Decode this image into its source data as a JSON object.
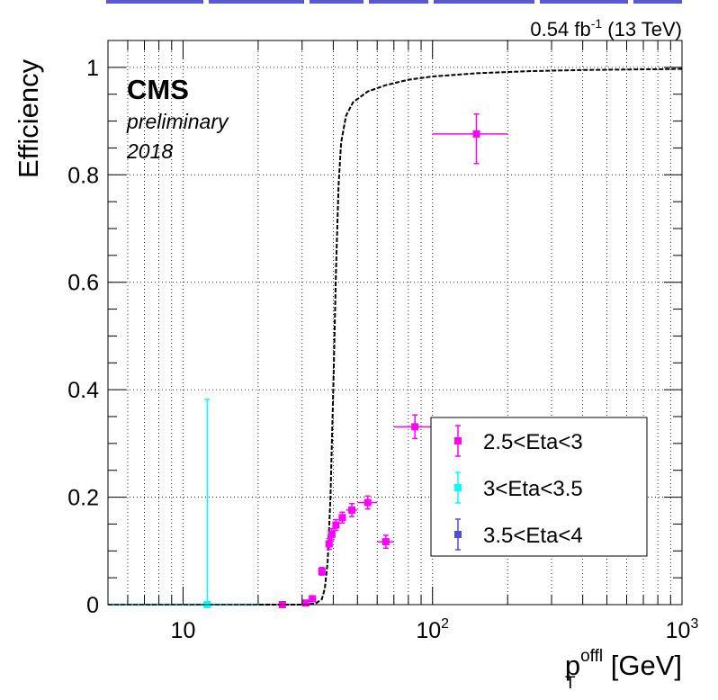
{
  "header": {
    "lumi_main": "0.54 fb",
    "lumi_exp": "-1",
    "lumi_tail": " (13 TeV)"
  },
  "labels": {
    "cms": "CMS",
    "status": "preliminary",
    "year": "2018"
  },
  "chart_data": {
    "type": "scatter",
    "ylabel": "Efficiency",
    "xlabel": {
      "base": "p",
      "sub": "T",
      "sup": "offl",
      "unit": " [GeV]"
    },
    "xscale": "log",
    "xlim": [
      5,
      1000
    ],
    "ylim": [
      0,
      1.05
    ],
    "grid": true,
    "legend_position": "bottom-right",
    "y_ticks": [
      {
        "value": 0,
        "label": "0"
      },
      {
        "value": 0.2,
        "label": "0.2"
      },
      {
        "value": 0.4,
        "label": "0.4"
      },
      {
        "value": 0.6,
        "label": "0.6"
      },
      {
        "value": 0.8,
        "label": "0.8"
      },
      {
        "value": 1,
        "label": "1"
      }
    ],
    "x_ticks": [
      {
        "value": 10,
        "base": "10",
        "exp": ""
      },
      {
        "value": 100,
        "base": "10",
        "exp": "2"
      },
      {
        "value": 1000,
        "base": "10",
        "exp": "3"
      }
    ],
    "reference_curve": {
      "style": "dashed",
      "color": "#000000",
      "points": [
        [
          5,
          0
        ],
        [
          30,
          0
        ],
        [
          34,
          0.002
        ],
        [
          36,
          0.01
        ],
        [
          37,
          0.03
        ],
        [
          38,
          0.08
        ],
        [
          39,
          0.2
        ],
        [
          40,
          0.4
        ],
        [
          41,
          0.62
        ],
        [
          42,
          0.78
        ],
        [
          43,
          0.86
        ],
        [
          45,
          0.91
        ],
        [
          48,
          0.935
        ],
        [
          55,
          0.955
        ],
        [
          65,
          0.967
        ],
        [
          80,
          0.977
        ],
        [
          100,
          0.983
        ],
        [
          150,
          0.989
        ],
        [
          250,
          0.993
        ],
        [
          400,
          0.995
        ],
        [
          1000,
          0.997
        ]
      ]
    },
    "series": [
      {
        "name": "2.5<Eta<3",
        "color": "#ff00ff",
        "points": [
          {
            "x": 25,
            "y": 0.0,
            "xerr": [
              0.8,
              0.8
            ],
            "yerr": [
              0.0,
              0.003
            ]
          },
          {
            "x": 31,
            "y": 0.003,
            "xerr": [
              0.8,
              0.8
            ],
            "yerr": [
              0.002,
              0.004
            ]
          },
          {
            "x": 33,
            "y": 0.011,
            "xerr": [
              0.8,
              0.8
            ],
            "yerr": [
              0.004,
              0.005
            ]
          },
          {
            "x": 36,
            "y": 0.062,
            "xerr": [
              1.2,
              1.2
            ],
            "yerr": [
              0.007,
              0.007
            ]
          },
          {
            "x": 38.5,
            "y": 0.113,
            "xerr": [
              0.5,
              0.5
            ],
            "yerr": [
              0.01,
              0.01
            ]
          },
          {
            "x": 39.5,
            "y": 0.131,
            "xerr": [
              0.5,
              0.5
            ],
            "yerr": [
              0.01,
              0.01
            ]
          },
          {
            "x": 41,
            "y": 0.148,
            "xerr": [
              1.0,
              1.0
            ],
            "yerr": [
              0.01,
              0.01
            ]
          },
          {
            "x": 43.5,
            "y": 0.162,
            "xerr": [
              1.5,
              1.5
            ],
            "yerr": [
              0.01,
              0.01
            ]
          },
          {
            "x": 47.5,
            "y": 0.176,
            "xerr": [
              2.5,
              2.5
            ],
            "yerr": [
              0.012,
              0.012
            ]
          },
          {
            "x": 55,
            "y": 0.19,
            "xerr": [
              5,
              5
            ],
            "yerr": [
              0.012,
              0.012
            ]
          },
          {
            "x": 65,
            "y": 0.117,
            "xerr": [
              5,
              5
            ],
            "yerr": [
              0.012,
              0.012
            ]
          },
          {
            "x": 85,
            "y": 0.331,
            "xerr": [
              15,
              15
            ],
            "yerr": [
              0.022,
              0.022
            ]
          },
          {
            "x": 150,
            "y": 0.876,
            "xerr": [
              50,
              50
            ],
            "yerr": [
              0.055,
              0.037
            ]
          }
        ]
      },
      {
        "name": "3<Eta<3.5",
        "color": "#00ffff",
        "points": [
          {
            "x": 12.5,
            "y": 0.0,
            "xerr": [
              7.5,
              7.5
            ],
            "yerr": [
              0.0,
              0.382
            ]
          }
        ]
      },
      {
        "name": "3.5<Eta<4",
        "color": "#4d4dd6",
        "points": []
      }
    ]
  }
}
